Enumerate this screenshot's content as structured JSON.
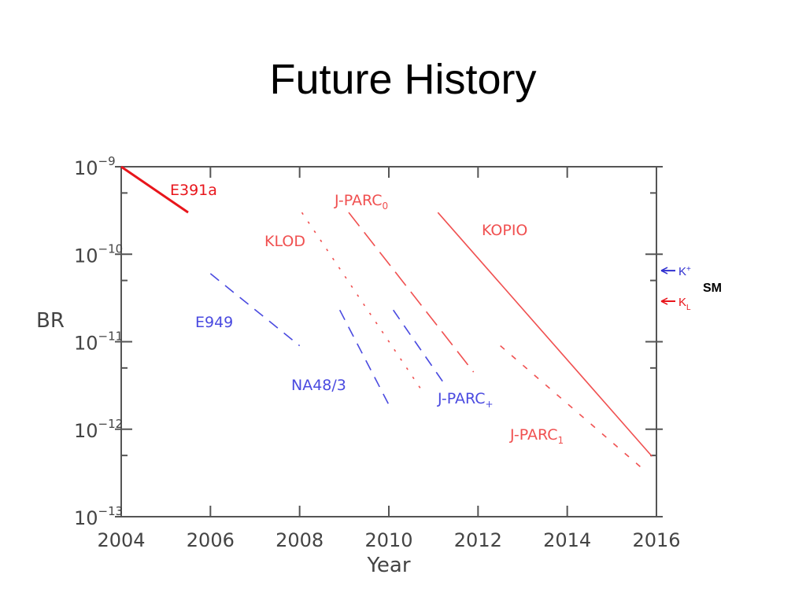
{
  "slide": {
    "title": "Future History"
  },
  "chart_data": {
    "type": "line",
    "title": "",
    "xlabel": "Year",
    "ylabel": "BR",
    "xlim": [
      2004,
      2016
    ],
    "ylim": [
      1e-13,
      1e-09
    ],
    "yscale": "log",
    "grid": false,
    "x_ticks": [
      "2004",
      "2006",
      "2008",
      "2010",
      "2012",
      "2014",
      "2016"
    ],
    "y_ticks": [
      {
        "base": "10",
        "exp": "−9"
      },
      {
        "base": "10",
        "exp": "−10"
      },
      {
        "base": "10",
        "exp": "−11"
      },
      {
        "base": "10",
        "exp": "−12"
      },
      {
        "base": "10",
        "exp": "−13"
      }
    ],
    "series": [
      {
        "name": "E391a",
        "sub": "",
        "color": "#e8151b",
        "style": "solid-thick",
        "x": [
          2004,
          2005.5
        ],
        "y": [
          1e-09,
          3e-10
        ]
      },
      {
        "name": "KLOD",
        "sub": "",
        "color": "#f05050",
        "style": "dotted",
        "x": [
          2008.05,
          2010.8
        ],
        "y": [
          3e-10,
          2.5e-12
        ]
      },
      {
        "name": "J-PARC",
        "sub": "0",
        "color": "#f05050",
        "style": "long-dash",
        "x": [
          2009.1,
          2011.9
        ],
        "y": [
          3e-10,
          4.5e-12
        ]
      },
      {
        "name": "KOPIO",
        "sub": "",
        "color": "#f05050",
        "style": "solid",
        "x": [
          2011.1,
          2015.9
        ],
        "y": [
          3e-10,
          4.9e-13
        ]
      },
      {
        "name": "J-PARC",
        "sub": "1",
        "color": "#f05050",
        "style": "short-dash",
        "x": [
          2012.5,
          2015.7
        ],
        "y": [
          9e-12,
          3.5e-13
        ]
      },
      {
        "name": "E949",
        "sub": "",
        "color": "#4a4ae0",
        "style": "dash",
        "x": [
          2006,
          2008
        ],
        "y": [
          6e-11,
          9e-12
        ]
      },
      {
        "name": "NA48/3",
        "sub": "",
        "color": "#4a4ae0",
        "style": "dash",
        "x": [
          2008.9,
          2010.05
        ],
        "y": [
          2.3e-11,
          1.7e-12
        ]
      },
      {
        "name": "J-PARC",
        "sub": "+",
        "color": "#4a4ae0",
        "style": "dash",
        "x": [
          2010.1,
          2011.3
        ],
        "y": [
          2.3e-11,
          3e-12
        ]
      }
    ],
    "annotations": {
      "sm_label": "SM",
      "k_plus": {
        "label": "K",
        "sup": "+",
        "value": 6.5e-11,
        "color": "#3030d0"
      },
      "k_long": {
        "label": "K",
        "sub": "L",
        "value": 2.9e-11,
        "color": "#e8151b"
      }
    }
  }
}
